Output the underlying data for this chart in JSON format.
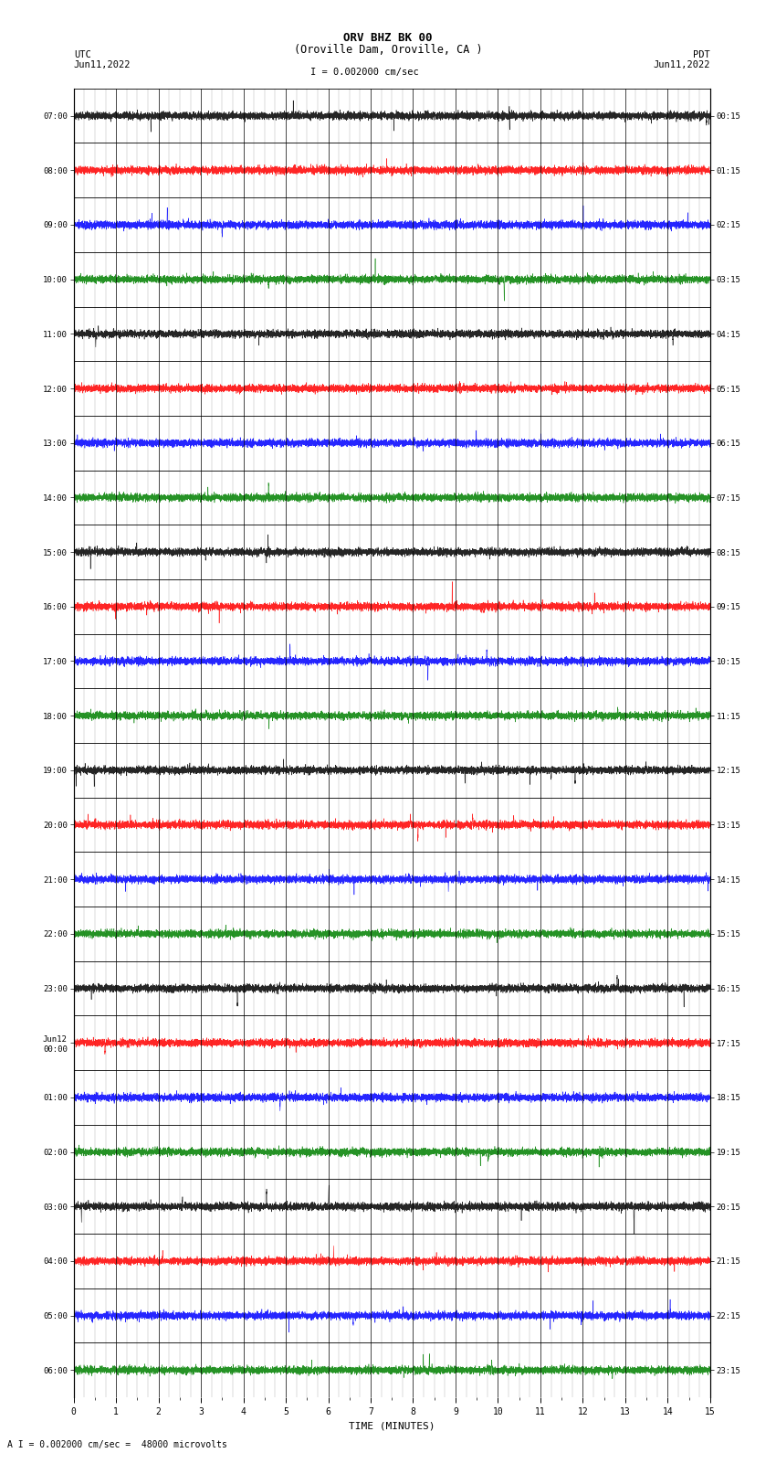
{
  "title_line1": "ORV BHZ BK 00",
  "title_line2": "(Oroville Dam, Oroville, CA )",
  "scale_label": "I = 0.002000 cm/sec",
  "bottom_label": "A I = 0.002000 cm/sec =  48000 microvolts",
  "left_header": "UTC",
  "right_header": "PDT",
  "left_date": "Jun11,2022",
  "right_date": "Jun11,2022",
  "xlabel": "TIME (MINUTES)",
  "utc_labels": [
    "07:00",
    "08:00",
    "09:00",
    "10:00",
    "11:00",
    "12:00",
    "13:00",
    "14:00",
    "15:00",
    "16:00",
    "17:00",
    "18:00",
    "19:00",
    "20:00",
    "21:00",
    "22:00",
    "23:00",
    "Jun12\n00:00",
    "01:00",
    "02:00",
    "03:00",
    "04:00",
    "05:00",
    "06:00"
  ],
  "pdt_labels": [
    "00:15",
    "01:15",
    "02:15",
    "03:15",
    "04:15",
    "05:15",
    "06:15",
    "07:15",
    "08:15",
    "09:15",
    "10:15",
    "11:15",
    "12:15",
    "13:15",
    "14:15",
    "15:15",
    "16:15",
    "17:15",
    "18:15",
    "19:15",
    "20:15",
    "21:15",
    "22:15",
    "23:15"
  ],
  "row_colors": [
    "#000000",
    "#ff0000",
    "#0000ff",
    "#008000",
    "#000000",
    "#ff0000",
    "#0000ff",
    "#008000",
    "#000000",
    "#ff0000",
    "#0000ff",
    "#008000",
    "#000000",
    "#ff0000",
    "#0000ff",
    "#008000",
    "#000000",
    "#ff0000",
    "#0000ff",
    "#008000",
    "#000000",
    "#ff0000",
    "#0000ff",
    "#008000"
  ],
  "n_rows": 24,
  "n_minutes": 15,
  "bg_color": "#ffffff",
  "grid_color": "#888888",
  "border_color": "#000000",
  "tick_minutes": [
    0,
    1,
    2,
    3,
    4,
    5,
    6,
    7,
    8,
    9,
    10,
    11,
    12,
    13,
    14,
    15
  ],
  "figsize": [
    8.5,
    16.13
  ],
  "dpi": 100
}
